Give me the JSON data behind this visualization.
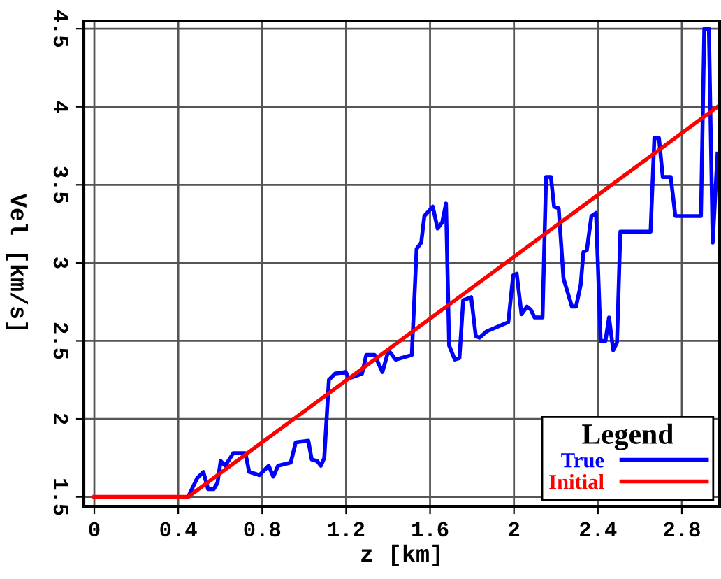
{
  "chart_data": {
    "type": "line",
    "xlabel": "z [km]",
    "ylabel": "Vel [km/s]",
    "xlim": [
      -0.05,
      2.98
    ],
    "ylim": [
      1.44,
      4.55
    ],
    "xticks": [
      0,
      0.4,
      0.8,
      1.2,
      1.6,
      2,
      2.4,
      2.8
    ],
    "yticks": [
      1.5,
      2,
      2.5,
      3,
      3.5,
      4,
      4.5
    ],
    "grid": true,
    "legend": "bottom right",
    "legend_title": "Legend",
    "series": [
      {
        "name": "True",
        "color": "#0000ff",
        "x": [
          0.447,
          0.49,
          0.52,
          0.542,
          0.569,
          0.587,
          0.602,
          0.624,
          0.662,
          0.72,
          0.738,
          0.787,
          0.831,
          0.853,
          0.876,
          0.936,
          0.96,
          1.02,
          1.036,
          1.062,
          1.08,
          1.096,
          1.118,
          1.147,
          1.198,
          1.213,
          1.276,
          1.296,
          1.336,
          1.373,
          1.402,
          1.436,
          1.513,
          1.536,
          1.558,
          1.573,
          1.613,
          1.636,
          1.658,
          1.676,
          1.691,
          1.718,
          1.74,
          1.758,
          1.796,
          1.818,
          1.836,
          1.869,
          1.973,
          1.996,
          2.013,
          2.036,
          2.062,
          2.08,
          2.098,
          2.136,
          2.153,
          2.176,
          2.191,
          2.213,
          2.236,
          2.276,
          2.296,
          2.318,
          2.331,
          2.347,
          2.369,
          2.391,
          2.413,
          2.436,
          2.453,
          2.473,
          2.491,
          2.507,
          2.651,
          2.669,
          2.691,
          2.709,
          2.747,
          2.769,
          2.891,
          2.907,
          2.929,
          2.947,
          2.97
        ],
        "values": [
          1.5,
          1.62,
          1.66,
          1.55,
          1.55,
          1.59,
          1.73,
          1.7,
          1.78,
          1.78,
          1.66,
          1.64,
          1.7,
          1.63,
          1.7,
          1.72,
          1.85,
          1.86,
          1.74,
          1.73,
          1.7,
          1.75,
          2.25,
          2.29,
          2.3,
          2.26,
          2.29,
          2.41,
          2.41,
          2.3,
          2.44,
          2.38,
          2.41,
          3.09,
          3.13,
          3.3,
          3.36,
          3.22,
          3.26,
          3.38,
          2.47,
          2.38,
          2.39,
          2.76,
          2.78,
          2.53,
          2.52,
          2.56,
          2.62,
          2.92,
          2.93,
          2.67,
          2.72,
          2.7,
          2.65,
          2.65,
          3.55,
          3.55,
          3.36,
          3.35,
          2.9,
          2.72,
          2.72,
          2.86,
          3.07,
          3.08,
          3.3,
          3.32,
          2.5,
          2.5,
          2.65,
          2.44,
          2.49,
          3.2,
          3.2,
          3.8,
          3.8,
          3.55,
          3.55,
          3.3,
          3.3,
          4.5,
          4.5,
          3.13,
          3.7
        ]
      },
      {
        "name": "Initial",
        "color": "#ff0000",
        "x": [
          0,
          0.447,
          2.97
        ],
        "values": [
          1.5,
          1.5,
          4.0
        ]
      }
    ]
  }
}
